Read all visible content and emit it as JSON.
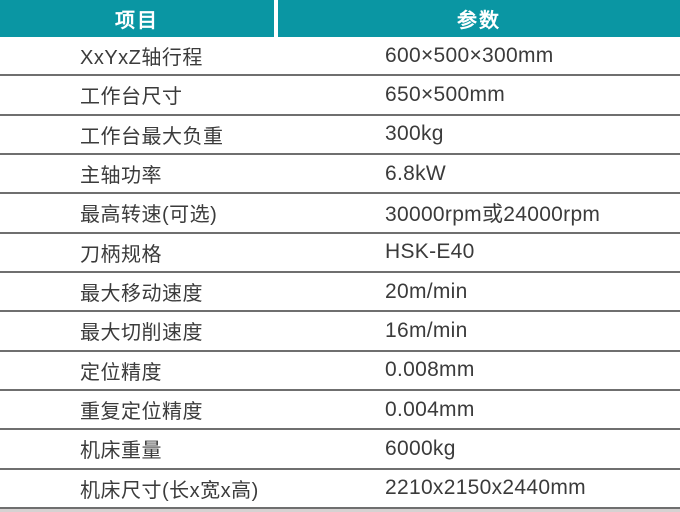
{
  "table": {
    "header": {
      "item_label": "项目",
      "param_label": "参数"
    },
    "rows": [
      {
        "label": "XxYxZ轴行程",
        "value": "600×500×300mm"
      },
      {
        "label": "工作台尺寸",
        "value": "650×500mm"
      },
      {
        "label": "工作台最大负重",
        "value": "300kg"
      },
      {
        "label": "主轴功率",
        "value": "6.8kW"
      },
      {
        "label": "最高转速(可选)",
        "value": "30000rpm或24000rpm"
      },
      {
        "label": "刀柄规格",
        "value": "HSK-E40"
      },
      {
        "label": "最大移动速度",
        "value": "20m/min"
      },
      {
        "label": "最大切削速度",
        "value": "16m/min"
      },
      {
        "label": "定位精度",
        "value": "0.008mm"
      },
      {
        "label": "重复定位精度",
        "value": "0.004mm"
      },
      {
        "label": "机床重量",
        "value": "6000kg"
      },
      {
        "label": "机床尺寸(长x宽x高)",
        "value": "2210x2150x2440mm"
      }
    ],
    "colors": {
      "header_bg": "#0a96a3",
      "header_text": "#ffffff",
      "divider": "#6f6f6f",
      "body_text": "#3b3b3b"
    }
  }
}
